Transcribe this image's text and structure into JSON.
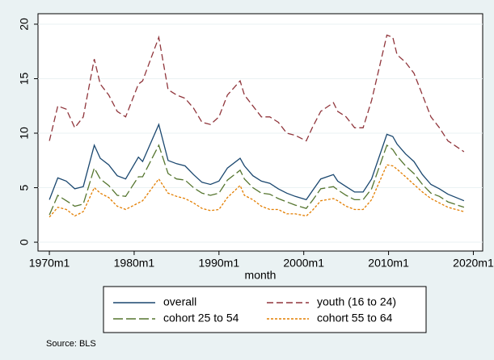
{
  "chart_data": {
    "type": "line",
    "xlabel": "month",
    "note": "Source: BLS",
    "x": [
      1970,
      1971,
      1972,
      1973,
      1974,
      1975.3,
      1976,
      1977,
      1978,
      1979,
      1980.5,
      1981,
      1982.9,
      1984,
      1985,
      1986,
      1987,
      1988,
      1989,
      1990,
      1991,
      1992.5,
      1993,
      1994,
      1995,
      1996,
      1997,
      1998,
      1999,
      2000.3,
      2001,
      2002,
      2003.5,
      2004,
      2005,
      2006,
      2007,
      2008,
      2009.8,
      2010.5,
      2011,
      2012,
      2013,
      2014,
      2015,
      2016,
      2017,
      2018.9
    ],
    "series": [
      {
        "name": "overall",
        "color": "#1a476f",
        "dash": "none",
        "values": [
          3.9,
          5.9,
          5.6,
          4.9,
          5.1,
          8.9,
          7.7,
          7.1,
          6.1,
          5.8,
          7.8,
          7.4,
          10.8,
          7.5,
          7.2,
          7.0,
          6.2,
          5.5,
          5.3,
          5.6,
          6.8,
          7.7,
          7.0,
          6.1,
          5.6,
          5.4,
          4.9,
          4.5,
          4.2,
          3.9,
          4.7,
          5.8,
          6.2,
          5.6,
          5.1,
          4.6,
          4.6,
          5.8,
          9.9,
          9.7,
          9.0,
          8.1,
          7.4,
          6.2,
          5.3,
          4.9,
          4.4,
          3.8
        ]
      },
      {
        "name": "youth (16 to 24)",
        "color": "#90353b",
        "dash": "8 4",
        "values": [
          9.3,
          12.5,
          12.2,
          10.5,
          11.5,
          16.8,
          14.5,
          13.5,
          12.0,
          11.5,
          14.5,
          14.8,
          18.8,
          14.0,
          13.5,
          13.2,
          12.3,
          11.0,
          10.8,
          11.5,
          13.5,
          14.8,
          13.5,
          12.5,
          11.5,
          11.5,
          11.0,
          10.0,
          9.8,
          9.3,
          10.5,
          12.0,
          12.8,
          12.0,
          11.5,
          10.5,
          10.5,
          13.0,
          19.0,
          18.8,
          17.2,
          16.5,
          15.5,
          13.5,
          11.5,
          10.5,
          9.3,
          8.3
        ]
      },
      {
        "name": "cohort 25 to 54",
        "color": "#55752f",
        "dash": "12 4",
        "values": [
          2.5,
          4.3,
          3.8,
          3.3,
          3.5,
          6.8,
          5.8,
          5.2,
          4.3,
          4.2,
          6.0,
          6.0,
          8.9,
          6.3,
          5.8,
          5.7,
          5.0,
          4.5,
          4.3,
          4.5,
          5.7,
          6.6,
          5.8,
          5.0,
          4.5,
          4.4,
          4.0,
          3.7,
          3.4,
          3.1,
          3.8,
          4.9,
          5.1,
          4.8,
          4.3,
          3.9,
          3.9,
          4.9,
          8.9,
          8.5,
          7.9,
          7.0,
          6.3,
          5.3,
          4.5,
          4.2,
          3.7,
          3.2
        ]
      },
      {
        "name": "cohort 55 to 64",
        "color": "#e37e00",
        "dash": "3 2",
        "values": [
          2.3,
          3.2,
          3.0,
          2.4,
          2.8,
          5.0,
          4.5,
          4.1,
          3.3,
          3.0,
          3.6,
          3.8,
          5.8,
          4.5,
          4.2,
          4.0,
          3.6,
          3.1,
          2.9,
          3.0,
          4.1,
          5.2,
          4.3,
          3.9,
          3.3,
          3.0,
          3.0,
          2.6,
          2.6,
          2.4,
          2.9,
          3.8,
          4.0,
          3.8,
          3.3,
          3.0,
          3.0,
          3.9,
          7.1,
          7.0,
          6.7,
          6.0,
          5.3,
          4.6,
          4.0,
          3.6,
          3.2,
          2.8
        ]
      }
    ],
    "xlim": [
      1968.66,
      2021.1
    ],
    "ylim": [
      -0.81,
      20.96
    ],
    "xticks": [
      {
        "value": 1970,
        "label": "1970m1"
      },
      {
        "value": 1980,
        "label": "1980m1"
      },
      {
        "value": 1990,
        "label": "1990m1"
      },
      {
        "value": 2000,
        "label": "2000m1"
      },
      {
        "value": 2010,
        "label": "2010m1"
      },
      {
        "value": 2020,
        "label": "2020m1"
      }
    ],
    "yticks": [
      0,
      5,
      10,
      15,
      20
    ],
    "grid": true
  }
}
